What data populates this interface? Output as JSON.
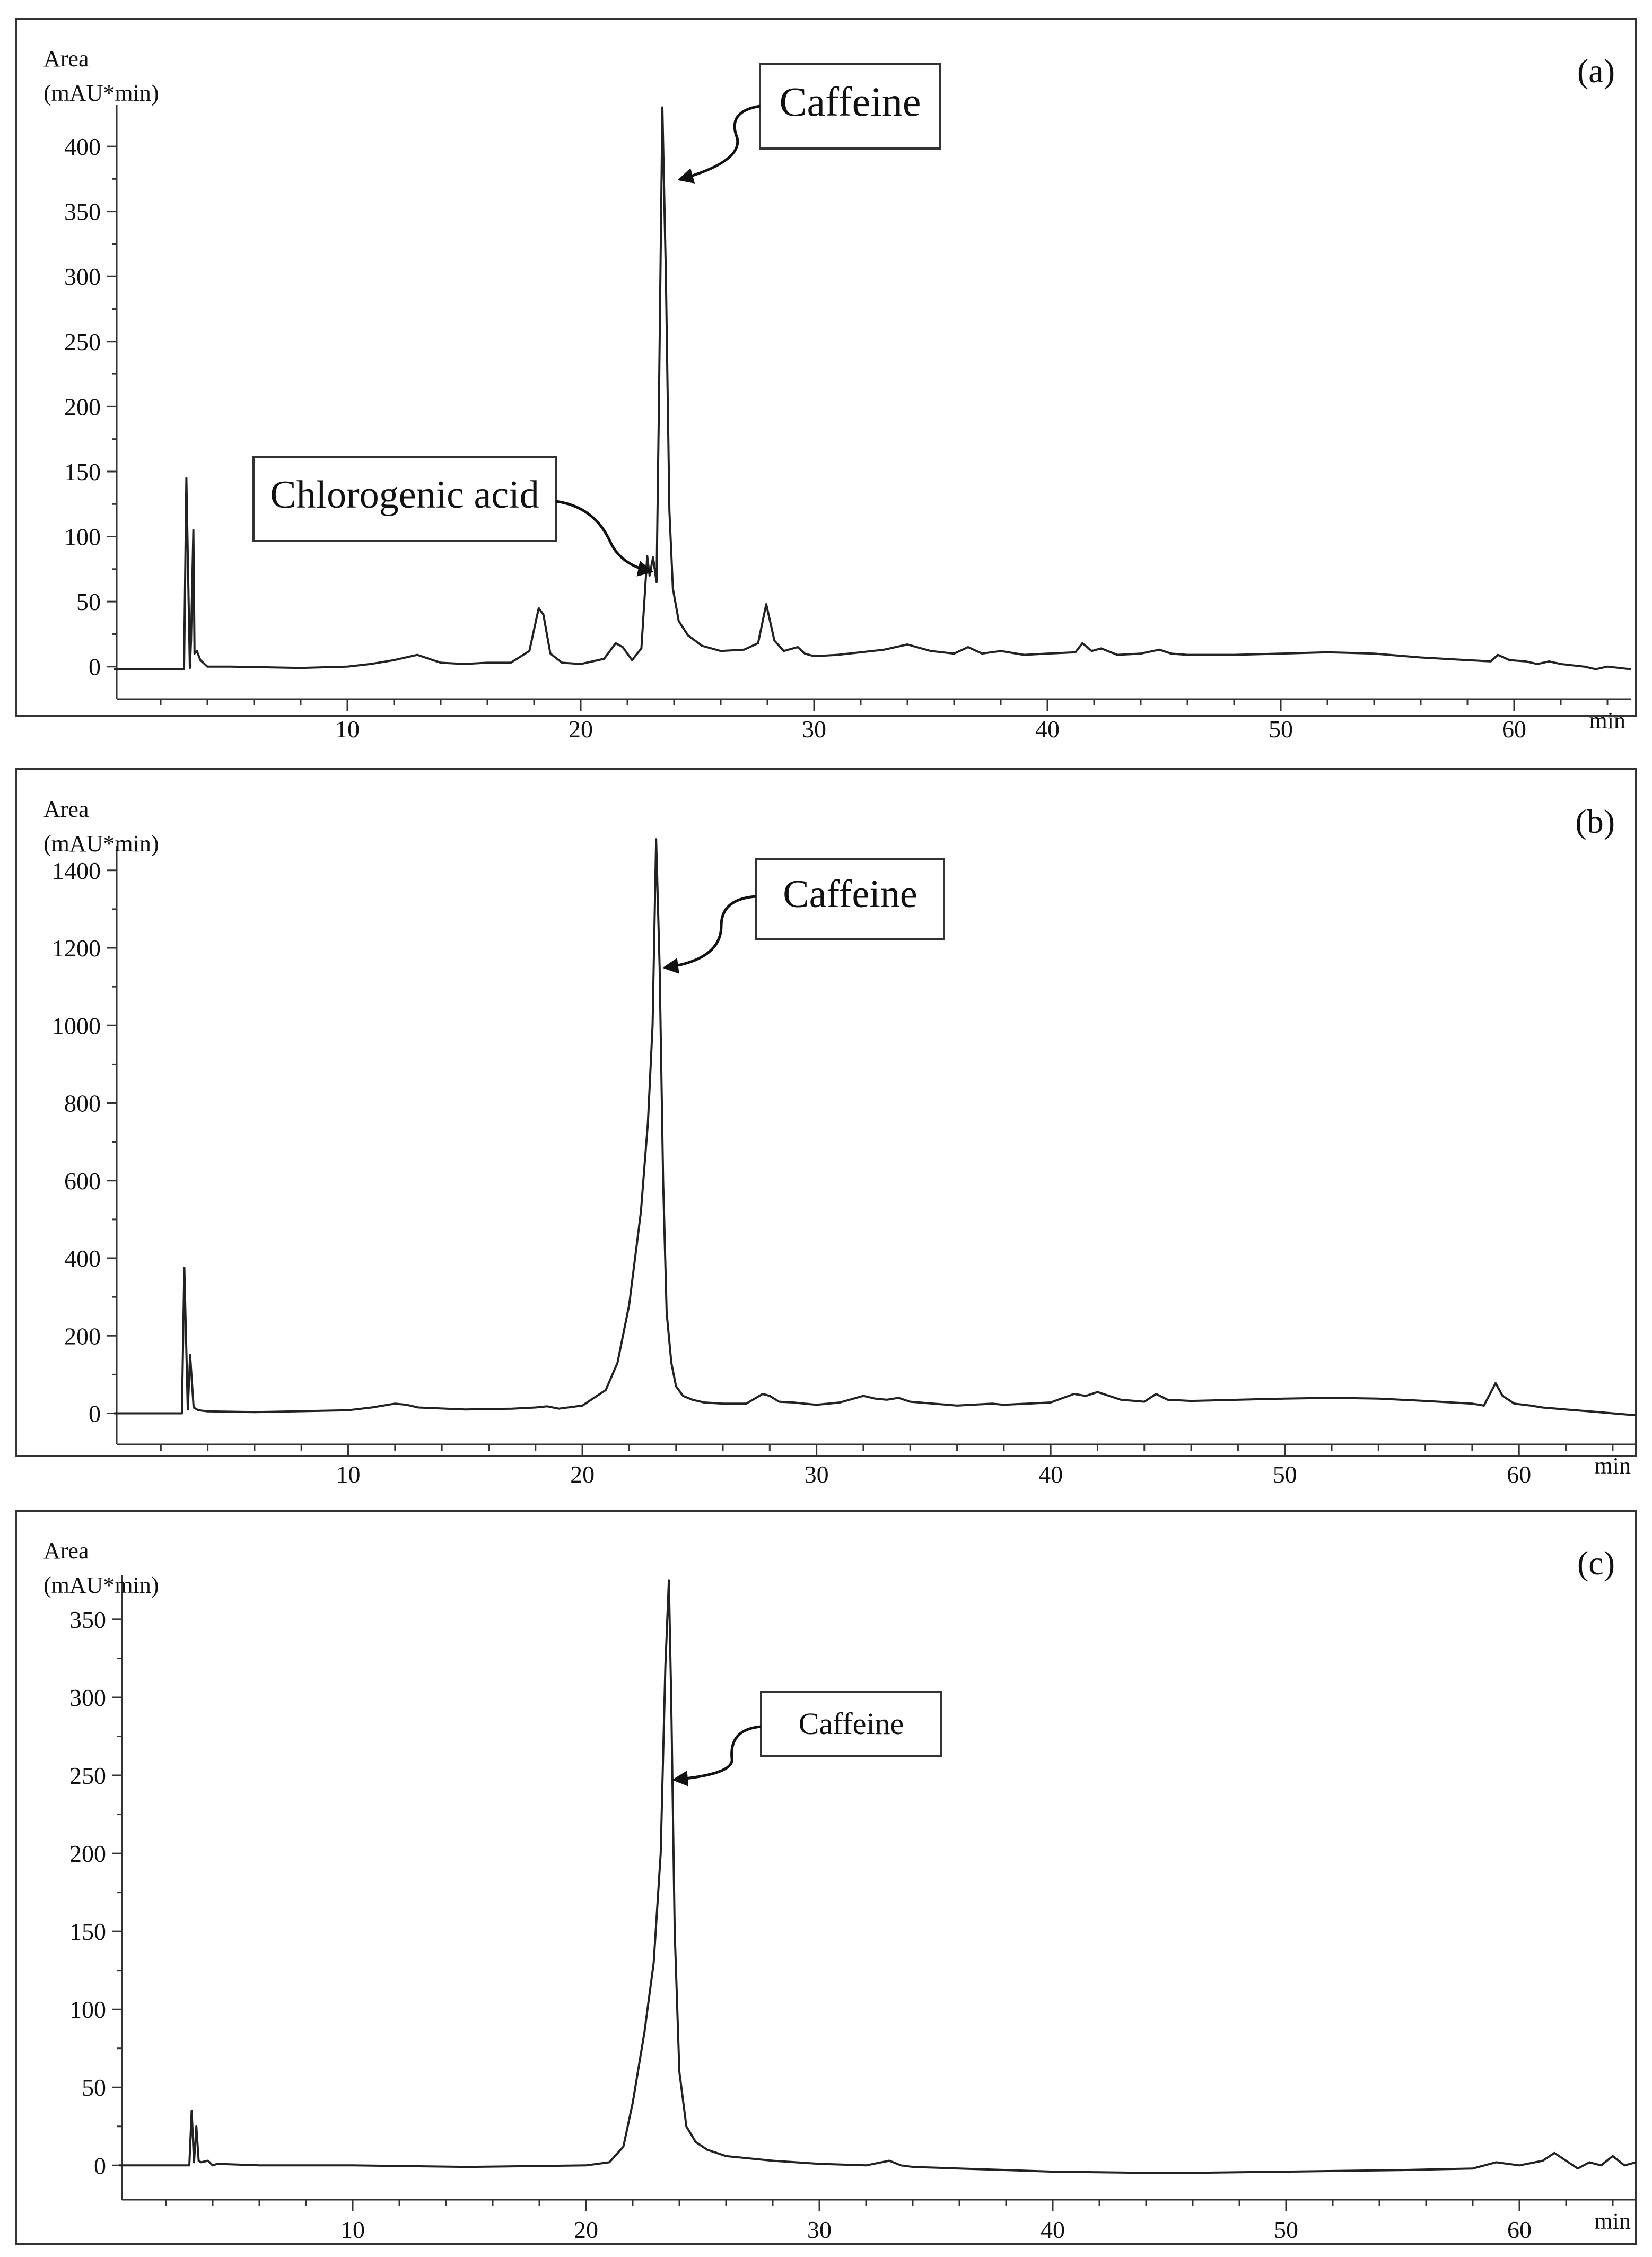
{
  "chart_data": [
    {
      "type": "line",
      "panel_label": "(a)",
      "ylabel_line1": "Area",
      "ylabel_line2": "(mAU*min)",
      "xlabel": "min",
      "xlim": [
        0,
        65
      ],
      "ylim": [
        -25,
        440
      ],
      "xticks": [
        10,
        20,
        30,
        40,
        50,
        60
      ],
      "yticks": [
        0,
        50,
        100,
        150,
        200,
        250,
        300,
        350,
        400
      ],
      "annotations": [
        {
          "text": "Caffeine",
          "x": 23.6,
          "y": 375
        },
        {
          "text": "Chlorogenic acid",
          "x": 22.9,
          "y": 72
        }
      ],
      "series": [
        {
          "x": [
            0,
            3.0,
            3.1,
            3.25,
            3.3,
            3.4,
            3.45,
            3.55,
            3.7,
            4.0,
            5,
            8,
            10,
            11,
            12,
            13,
            14,
            15,
            16,
            17,
            17.8,
            18.2,
            18.4,
            18.7,
            19.2,
            20,
            21,
            21.5,
            21.8,
            22.2,
            22.6,
            22.85,
            22.95,
            23.1,
            23.25,
            23.35,
            23.5,
            23.65,
            23.8,
            23.95,
            24.2,
            24.6,
            25.2,
            26,
            27,
            27.6,
            27.95,
            28.3,
            28.7,
            29.3,
            29.6,
            30,
            31,
            32,
            33,
            34,
            35,
            36,
            36.6,
            37.2,
            38,
            39,
            40,
            41.2,
            41.5,
            41.9,
            42.3,
            43,
            44,
            44.8,
            45.3,
            46,
            48,
            50,
            52,
            54,
            56,
            58,
            59,
            59.3,
            59.8,
            60.5,
            61,
            61.5,
            62,
            62.5,
            63,
            63.5,
            64,
            64.5,
            65
          ],
          "values": [
            -2,
            -2,
            145,
            -1,
            20,
            105,
            10,
            12,
            5,
            0,
            0,
            -1,
            0,
            2,
            5,
            9,
            3,
            2,
            3,
            3,
            12,
            45,
            40,
            10,
            3,
            2,
            6,
            18,
            15,
            5,
            14,
            85,
            70,
            84,
            65,
            200,
            430,
            300,
            120,
            60,
            35,
            24,
            16,
            12,
            13,
            18,
            48,
            20,
            12,
            15,
            10,
            8,
            9,
            11,
            13,
            17,
            12,
            10,
            15,
            10,
            12,
            9,
            10,
            11,
            18,
            12,
            14,
            9,
            10,
            13,
            10,
            9,
            9,
            10,
            11,
            10,
            7,
            5,
            4,
            9,
            5,
            4,
            2,
            4,
            2,
            1,
            0,
            -2,
            0,
            -1,
            -2
          ]
        }
      ]
    },
    {
      "type": "line",
      "panel_label": "(b)",
      "ylabel_line1": "Area",
      "ylabel_line2": "(mAU*min)",
      "xlabel": "min",
      "xlim": [
        0,
        65
      ],
      "ylim": [
        -80,
        1490
      ],
      "xticks": [
        10,
        20,
        30,
        40,
        50,
        60
      ],
      "yticks": [
        0,
        200,
        400,
        600,
        800,
        1000,
        1200,
        1400
      ],
      "annotations": [
        {
          "text": "Caffeine",
          "x": 23.4,
          "y": 1150
        }
      ],
      "series": [
        {
          "x": [
            0,
            2.9,
            3.0,
            3.15,
            3.25,
            3.4,
            3.6,
            4.0,
            6,
            10,
            11,
            12,
            12.5,
            13,
            15,
            17,
            18,
            18.5,
            19,
            20,
            21,
            21.5,
            22,
            22.5,
            22.8,
            23.0,
            23.15,
            23.3,
            23.45,
            23.6,
            23.8,
            24.0,
            24.3,
            24.7,
            25.2,
            26,
            27,
            27.7,
            28.0,
            28.4,
            29,
            29.5,
            30,
            31,
            32,
            32.5,
            33,
            33.5,
            34,
            35,
            36,
            37.5,
            38,
            39,
            40,
            41,
            41.5,
            42,
            42.5,
            43,
            44,
            44.5,
            45,
            46,
            48,
            50,
            52,
            54,
            56,
            58,
            58.5,
            59,
            59.3,
            59.8,
            60.5,
            61,
            62,
            63,
            64,
            65
          ],
          "values": [
            0,
            0,
            375,
            10,
            150,
            15,
            8,
            5,
            3,
            8,
            15,
            25,
            22,
            15,
            10,
            12,
            15,
            18,
            12,
            20,
            60,
            130,
            280,
            520,
            750,
            1000,
            1480,
            1150,
            600,
            260,
            130,
            70,
            45,
            35,
            28,
            25,
            25,
            50,
            45,
            30,
            28,
            25,
            22,
            28,
            45,
            38,
            35,
            40,
            30,
            25,
            20,
            25,
            22,
            25,
            28,
            50,
            45,
            55,
            45,
            35,
            30,
            50,
            35,
            32,
            35,
            38,
            40,
            38,
            32,
            25,
            20,
            78,
            45,
            25,
            20,
            15,
            10,
            5,
            0,
            -5
          ]
        }
      ]
    },
    {
      "type": "line",
      "panel_label": "(c)",
      "ylabel_line1": "Area",
      "ylabel_line2": "(mAU*min)",
      "xlabel": "min",
      "xlim": [
        0,
        65
      ],
      "ylim": [
        -22,
        385
      ],
      "xticks": [
        10,
        20,
        30,
        40,
        50,
        60
      ],
      "yticks": [
        0,
        50,
        100,
        150,
        200,
        250,
        300,
        350
      ],
      "annotations": [
        {
          "text": "Caffeine",
          "x": 23.6,
          "y": 252
        }
      ],
      "series": [
        {
          "x": [
            0,
            3.0,
            3.1,
            3.2,
            3.3,
            3.4,
            3.5,
            3.8,
            4.0,
            4.2,
            6,
            10,
            15,
            20,
            21,
            21.6,
            22.0,
            22.5,
            22.9,
            23.2,
            23.4,
            23.55,
            23.65,
            23.8,
            24.0,
            24.3,
            24.7,
            25.2,
            26,
            28,
            30,
            32,
            33,
            33.5,
            34,
            36,
            38,
            40,
            45,
            50,
            55,
            58,
            59,
            60,
            61,
            61.5,
            62,
            62.5,
            63,
            63.5,
            64,
            64.5,
            65
          ],
          "values": [
            0,
            0,
            35,
            2,
            25,
            3,
            2,
            3,
            0,
            1,
            0,
            0,
            -1,
            0,
            2,
            12,
            40,
            85,
            130,
            200,
            320,
            375,
            300,
            150,
            60,
            25,
            15,
            10,
            6,
            3,
            1,
            0,
            3,
            0,
            -1,
            -2,
            -3,
            -4,
            -5,
            -4,
            -3,
            -2,
            2,
            0,
            3,
            8,
            3,
            -2,
            2,
            0,
            6,
            0,
            2
          ]
        }
      ]
    }
  ]
}
